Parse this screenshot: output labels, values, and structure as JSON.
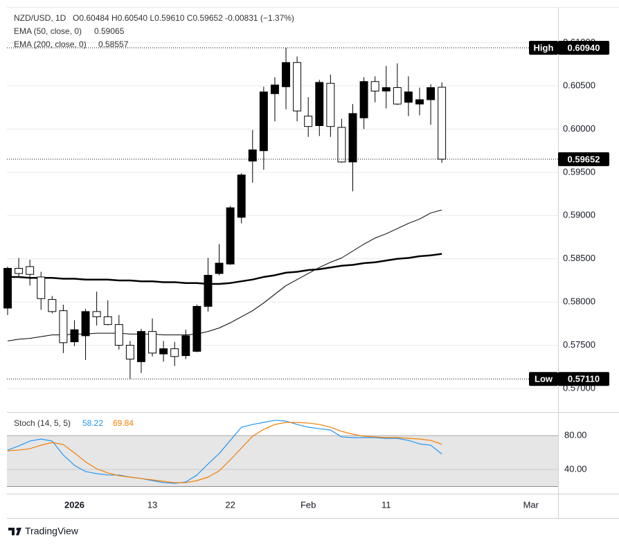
{
  "chart_data": [
    {
      "type": "candlestick",
      "symbol": "NZD/USD, 1D",
      "ohlc_text": "O0.60484 H0.60540 L0.59610 C0.59652 -0.00831 (−1.37%)",
      "categories": [
        null,
        null,
        null,
        null,
        null,
        null,
        "2026",
        null,
        null,
        null,
        null,
        null,
        null,
        "13",
        null,
        null,
        null,
        null,
        null,
        null,
        "22",
        null,
        null,
        null,
        null,
        null,
        null,
        "Feb",
        null,
        null,
        null,
        null,
        null,
        null,
        "11",
        null,
        null,
        null,
        null,
        null,
        null,
        null,
        null,
        null,
        null,
        null,
        null,
        "Mar"
      ],
      "open": [
        0.5793,
        0.5839,
        0.5841,
        0.5829,
        0.5803,
        0.579,
        0.5754,
        0.5761,
        0.5789,
        0.5783,
        0.5774,
        0.575,
        0.5731,
        0.5766,
        0.574,
        0.5746,
        0.5738,
        0.5743,
        0.5795,
        0.5833,
        0.5844,
        0.5898,
        0.5963,
        0.5975,
        0.6041,
        0.6049,
        0.6077,
        0.6015,
        0.6004,
        0.6053,
        0.6002,
        0.5962,
        0.6013,
        0.6055,
        0.6044,
        0.6048,
        0.6031,
        0.6029,
        0.6034,
        0.60484,
        null,
        null,
        null,
        null,
        null,
        null,
        null,
        null
      ],
      "high": [
        0.5841,
        0.5851,
        0.5849,
        0.5835,
        0.5807,
        0.5797,
        0.5779,
        0.5792,
        0.5812,
        0.5802,
        0.5785,
        0.5755,
        0.5769,
        0.5781,
        0.5755,
        0.5754,
        0.5768,
        0.5797,
        0.5851,
        0.5867,
        0.5911,
        0.5949,
        0.5999,
        0.6049,
        0.606,
        0.6094,
        0.6084,
        0.6037,
        0.6057,
        0.6063,
        0.6012,
        0.6029,
        0.606,
        0.6061,
        0.6073,
        0.6076,
        0.6061,
        0.6048,
        0.6052,
        0.6054,
        null,
        null,
        null,
        null,
        null,
        null,
        null,
        null
      ],
      "low": [
        0.5785,
        0.5829,
        0.5819,
        0.5791,
        0.5787,
        0.5741,
        0.5749,
        0.5733,
        0.5773,
        0.5773,
        0.5745,
        0.5711,
        0.5718,
        0.5737,
        0.5731,
        0.5726,
        0.5734,
        0.5742,
        0.5789,
        0.5831,
        0.5843,
        0.5891,
        0.5938,
        0.5953,
        0.6009,
        0.6023,
        0.6009,
        0.5991,
        0.5992,
        0.5991,
        0.5961,
        0.5928,
        0.6,
        0.6031,
        0.6024,
        0.6028,
        0.6015,
        0.6016,
        0.6005,
        0.5961,
        null,
        null,
        null,
        null,
        null,
        null,
        null,
        null
      ],
      "close": [
        0.5839,
        0.5833,
        0.5832,
        0.5804,
        0.5789,
        0.5753,
        0.5768,
        0.5789,
        0.5783,
        0.5774,
        0.575,
        0.5734,
        0.5766,
        0.5741,
        0.5746,
        0.5737,
        0.5761,
        0.5795,
        0.5831,
        0.5845,
        0.5909,
        0.5947,
        0.5976,
        0.6043,
        0.6051,
        0.6077,
        0.6021,
        0.6003,
        0.6054,
        0.6003,
        0.5962,
        0.6018,
        0.6055,
        0.6044,
        0.6048,
        0.6029,
        0.6043,
        0.6034,
        0.6048,
        0.59652,
        null,
        null,
        null,
        null,
        null,
        null,
        null,
        null
      ],
      "up_color": "#000000",
      "down_color": "#ffffff",
      "series": [
        {
          "name": "EMA (50, close, 0)",
          "color": "#000000",
          "line_width": 1,
          "values": [
            0.5755,
            0.5757,
            0.5758,
            0.576,
            0.5762,
            0.5762,
            0.5763,
            0.5763,
            0.5764,
            0.5764,
            0.5764,
            0.5763,
            0.5763,
            0.5763,
            0.5762,
            0.5762,
            0.5762,
            0.5763,
            0.5766,
            0.577,
            0.5776,
            0.5783,
            0.579,
            0.5799,
            0.5809,
            0.5819,
            0.5826,
            0.5833,
            0.584,
            0.5846,
            0.5851,
            0.5859,
            0.5867,
            0.5874,
            0.5879,
            0.5885,
            0.5891,
            0.5896,
            0.5903,
            0.59065,
            null,
            null,
            null,
            null,
            null,
            null,
            null,
            null
          ]
        },
        {
          "name": "EMA (200, close, 0)",
          "color": "#000000",
          "line_width": 2.5,
          "values": [
            0.5829,
            0.5829,
            0.5828,
            0.5828,
            0.5828,
            0.5827,
            0.5827,
            0.5826,
            0.5826,
            0.5826,
            0.5825,
            0.5825,
            0.5824,
            0.5824,
            0.5823,
            0.5823,
            0.5822,
            0.5822,
            0.5821,
            0.5821,
            0.5822,
            0.5824,
            0.5826,
            0.5829,
            0.5831,
            0.5834,
            0.5835,
            0.5837,
            0.5838,
            0.584,
            0.5842,
            0.5843,
            0.5845,
            0.5846,
            0.5848,
            0.585,
            0.5851,
            0.5853,
            0.5854,
            0.58557,
            null,
            null,
            null,
            null,
            null,
            null,
            null,
            null
          ]
        }
      ],
      "ylim": [
        0.56728,
        0.61413
      ],
      "yticks": [
        {
          "value": 0.61,
          "label": "0.61000"
        },
        {
          "value": 0.605,
          "label": "0.60500"
        },
        {
          "value": 0.6,
          "label": "0.60000"
        },
        {
          "value": 0.595,
          "label": "0.59500"
        },
        {
          "value": 0.59,
          "label": "0.59000"
        },
        {
          "value": 0.585,
          "label": "0.58500"
        },
        {
          "value": 0.58,
          "label": "0.58000"
        },
        {
          "value": 0.575,
          "label": "0.57500"
        },
        {
          "value": 0.57,
          "label": "0.57000"
        }
      ],
      "grid": true,
      "annotations": [
        {
          "text": "High",
          "value": 0.6094,
          "value_label": "0.60940"
        },
        {
          "text": "Low",
          "value": 0.5711,
          "value_label": "0.57110"
        }
      ],
      "last_price_line": true
    },
    {
      "type": "line",
      "title": "Stoch (14, 5, 5)",
      "series": [
        {
          "color": "#2196f3",
          "values": [
            62.9,
            67.8,
            73.5,
            75.9,
            73.5,
            57.1,
            44.9,
            37.6,
            35.1,
            33.5,
            33.5,
            31.0,
            29.4,
            26.9,
            24.5,
            23.7,
            25.3,
            33.5,
            46.5,
            58.8,
            74.3,
            89.8,
            93.1,
            95.5,
            98.0,
            97.1,
            93.1,
            89.8,
            88.2,
            86.5,
            78.4,
            77.6,
            77.6,
            77.6,
            76.7,
            76.7,
            74.3,
            70.2,
            68.6,
            58.22,
            null,
            null,
            null,
            null,
            null,
            null,
            null,
            null
          ]
        },
        {
          "color": "#f57c00",
          "values": [
            62.0,
            62.9,
            64.5,
            68.6,
            71.8,
            69.4,
            59.6,
            49.0,
            40.8,
            35.9,
            32.7,
            31.0,
            29.4,
            27.8,
            26.1,
            24.5,
            24.5,
            26.9,
            31.0,
            38.4,
            51.4,
            65.3,
            79.2,
            87.3,
            93.1,
            95.5,
            95.5,
            94.7,
            93.1,
            89.8,
            84.9,
            81.6,
            79.2,
            78.4,
            77.6,
            77.6,
            76.7,
            75.9,
            74.3,
            69.84,
            null,
            null,
            null,
            null,
            null,
            null,
            null,
            null
          ]
        }
      ],
      "ylim": [
        11.4,
        106.1
      ],
      "yticks": [
        {
          "value": 80,
          "label": "80.00"
        },
        {
          "value": 40,
          "label": "40.00"
        }
      ],
      "band": [
        20,
        80
      ],
      "band_color": "#e6e6e6",
      "grid": true
    }
  ],
  "footer": {
    "brand": "TradingView"
  }
}
